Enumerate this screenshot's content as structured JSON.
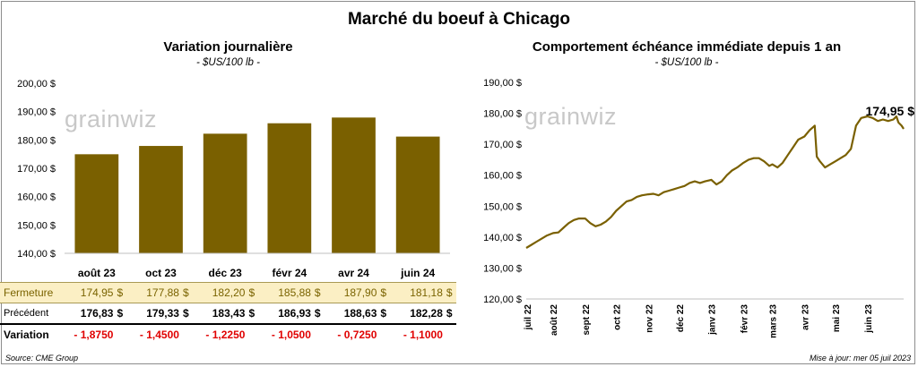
{
  "title": "Marché du boeuf à Chicago",
  "footer": {
    "source": "Source: CME Group",
    "updated": "Mise à jour: mer 05 juil 2023"
  },
  "watermark": "grainwiz",
  "colors": {
    "bar": "#7a6000",
    "line": "#7a6000",
    "close_row_bg": "#fbefc4",
    "negative": "#e00000"
  },
  "chart_data": [
    {
      "type": "bar",
      "title": "Variation journalière",
      "subtitle": "- $US/100 lb -",
      "categories": [
        "août 23",
        "oct 23",
        "déc 23",
        "févr 24",
        "avr 24",
        "juin 24"
      ],
      "values": [
        174.95,
        177.88,
        182.2,
        185.88,
        187.9,
        181.18
      ],
      "ylim": [
        140,
        200
      ],
      "yticks": [
        "140,00 $",
        "150,00 $",
        "160,00 $",
        "170,00 $",
        "180,00 $",
        "190,00 $",
        "200,00 $"
      ],
      "table": {
        "rows": [
          {
            "label": "Fermeture",
            "values": [
              "174,95",
              "177,88",
              "182,20",
              "185,88",
              "187,90",
              "181,18"
            ],
            "unit": "$"
          },
          {
            "label": "Précédent",
            "values": [
              "176,83",
              "179,33",
              "183,43",
              "186,93",
              "188,63",
              "182,28"
            ],
            "unit": "$"
          },
          {
            "label": "Variation",
            "values": [
              "- 1,8750",
              "- 1,4500",
              "- 1,2250",
              "- 1,0500",
              "- 0,7250",
              "- 1,1000"
            ],
            "unit": ""
          }
        ]
      }
    },
    {
      "type": "line",
      "title": "Comportement  échéance immédiate depuis 1 an",
      "subtitle": "- $US/100 lb -",
      "ylim": [
        120,
        190
      ],
      "yticks": [
        "120,00 $",
        "130,00 $",
        "140,00 $",
        "150,00 $",
        "160,00 $",
        "170,00 $",
        "180,00 $",
        "190,00 $"
      ],
      "xticks": [
        "juil 22",
        "août 22",
        "sept 22",
        "oct 22",
        "nov 22",
        "déc 22",
        "janv 23",
        "févr 23",
        "mars 23",
        "avr 23",
        "mai 23",
        "juin 23"
      ],
      "last_label": "174,95 $",
      "series": [
        {
          "x": [
            "2022-07-05",
            "2022-07-10",
            "2022-07-15",
            "2022-07-20",
            "2022-07-25",
            "2022-07-31",
            "2022-08-05",
            "2022-08-10",
            "2022-08-15",
            "2022-08-20",
            "2022-08-25",
            "2022-08-31",
            "2022-09-05",
            "2022-09-10",
            "2022-09-15",
            "2022-09-20",
            "2022-09-25",
            "2022-09-30",
            "2022-10-05",
            "2022-10-10",
            "2022-10-15",
            "2022-10-20",
            "2022-10-25",
            "2022-10-31",
            "2022-11-05",
            "2022-11-10",
            "2022-11-15",
            "2022-11-20",
            "2022-11-25",
            "2022-11-30",
            "2022-12-05",
            "2022-12-10",
            "2022-12-15",
            "2022-12-20",
            "2022-12-25",
            "2022-12-31",
            "2023-01-05",
            "2023-01-10",
            "2023-01-15",
            "2023-01-20",
            "2023-01-25",
            "2023-01-31",
            "2023-02-05",
            "2023-02-10",
            "2023-02-15",
            "2023-02-20",
            "2023-02-25",
            "2023-02-28",
            "2023-03-05",
            "2023-03-10",
            "2023-03-15",
            "2023-03-20",
            "2023-03-25",
            "2023-03-31",
            "2023-04-05",
            "2023-04-10",
            "2023-04-12",
            "2023-04-15",
            "2023-04-20",
            "2023-04-25",
            "2023-04-30",
            "2023-05-05",
            "2023-05-10",
            "2023-05-15",
            "2023-05-20",
            "2023-05-25",
            "2023-05-31",
            "2023-06-05",
            "2023-06-10",
            "2023-06-15",
            "2023-06-20",
            "2023-06-25",
            "2023-06-28",
            "2023-06-30",
            "2023-07-03",
            "2023-07-05"
          ],
          "y": [
            136.5,
            137.5,
            138.5,
            139.5,
            140.5,
            141.3,
            141.5,
            143.0,
            144.5,
            145.5,
            146.0,
            146.0,
            144.5,
            143.5,
            144.0,
            145.0,
            146.5,
            148.5,
            150.0,
            151.5,
            152.0,
            153.0,
            153.5,
            153.8,
            154.0,
            153.5,
            154.5,
            155.0,
            155.5,
            156.0,
            156.5,
            157.5,
            158.0,
            157.5,
            158.0,
            158.5,
            157.0,
            158.0,
            160.0,
            161.5,
            162.5,
            164.0,
            165.0,
            165.5,
            165.5,
            164.5,
            163.0,
            163.5,
            162.5,
            164.0,
            166.5,
            169.0,
            171.5,
            172.5,
            174.5,
            176.0,
            166.0,
            164.5,
            162.5,
            163.5,
            164.5,
            165.5,
            166.5,
            168.5,
            176.0,
            178.5,
            179.0,
            178.5,
            177.5,
            178.0,
            177.5,
            178.0,
            179.0,
            177.0,
            176.0,
            174.95
          ]
        }
      ]
    }
  ]
}
